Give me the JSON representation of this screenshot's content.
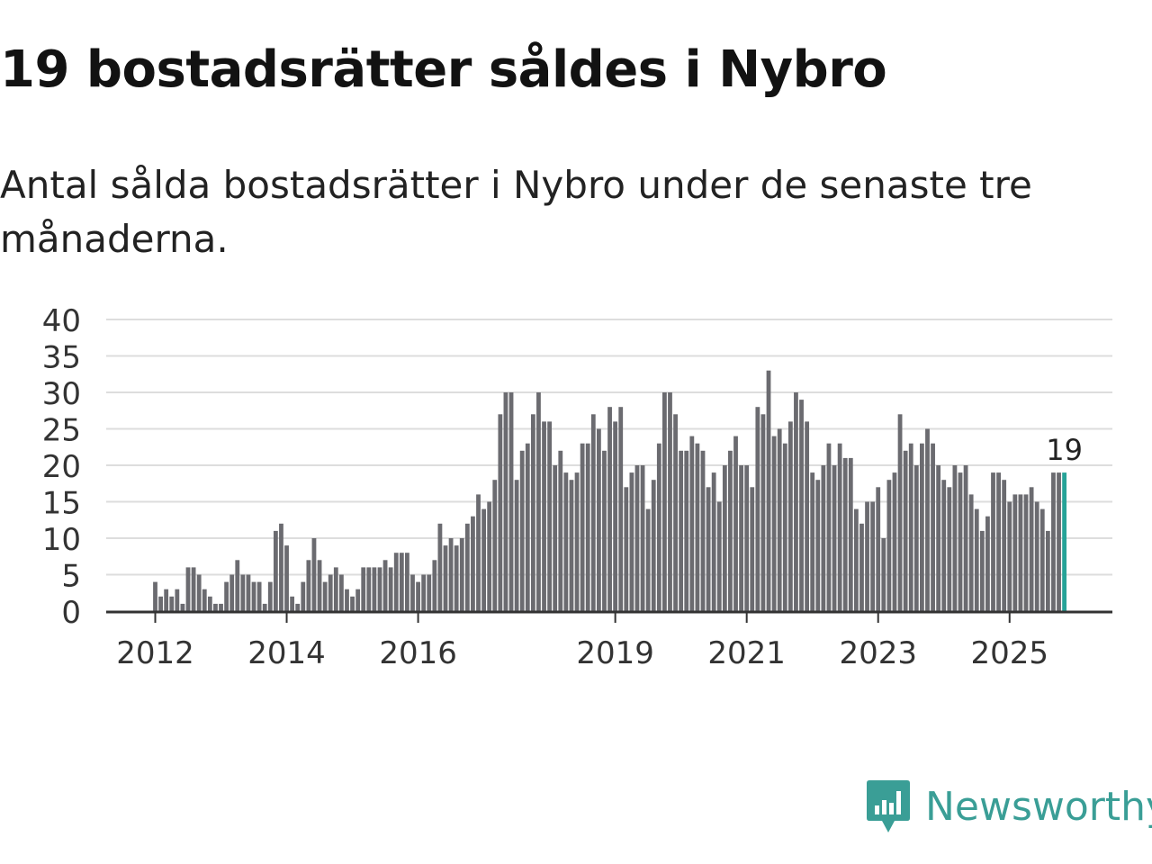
{
  "title": "19 bostadsrätter såldes i Nybro",
  "subtitle": "Antal sålda bostadsrätter i Nybro under de senaste tre månaderna.",
  "brand": {
    "name": "Newsworthy",
    "logo_icon": "bar-chart-speech-bubble-icon",
    "color": "#3a9e96"
  },
  "colors": {
    "bar": "#6b6b70",
    "highlight": "#26a398",
    "grid": "#dddddd",
    "axis": "#333333",
    "tick_text": "#333333"
  },
  "chart_data": {
    "type": "bar",
    "title": "19 bostadsrätter såldes i Nybro",
    "subtitle": "Antal sålda bostadsrätter i Nybro under de senaste tre månaderna.",
    "xlabel": "",
    "ylabel": "",
    "ylim": [
      0,
      40
    ],
    "yticks": [
      "0",
      "5",
      "10",
      "15",
      "20",
      "25",
      "30",
      "35",
      "40"
    ],
    "grid": true,
    "xtick_labels": [
      {
        "label": "2012",
        "bar_index": 0
      },
      {
        "label": "2014",
        "bar_index": 24
      },
      {
        "label": "2016",
        "bar_index": 48
      },
      {
        "label": "2019",
        "bar_index": 84
      },
      {
        "label": "2021",
        "bar_index": 108
      },
      {
        "label": "2023",
        "bar_index": 132
      },
      {
        "label": "2025",
        "bar_index": 156
      }
    ],
    "values": [
      4,
      2,
      3,
      2,
      3,
      1,
      6,
      6,
      5,
      3,
      2,
      1,
      1,
      4,
      5,
      7,
      5,
      5,
      4,
      4,
      1,
      4,
      11,
      12,
      9,
      2,
      1,
      4,
      7,
      10,
      7,
      4,
      5,
      6,
      5,
      3,
      2,
      3,
      6,
      6,
      6,
      6,
      7,
      6,
      8,
      8,
      8,
      5,
      4,
      5,
      5,
      7,
      12,
      9,
      10,
      9,
      10,
      12,
      13,
      16,
      14,
      15,
      18,
      27,
      30,
      30,
      18,
      22,
      23,
      27,
      30,
      26,
      26,
      20,
      22,
      19,
      18,
      19,
      23,
      23,
      27,
      25,
      22,
      28,
      26,
      28,
      17,
      19,
      20,
      20,
      14,
      18,
      23,
      30,
      30,
      27,
      22,
      22,
      24,
      23,
      22,
      17,
      19,
      15,
      20,
      22,
      24,
      20,
      20,
      17,
      28,
      27,
      33,
      24,
      25,
      23,
      26,
      30,
      29,
      26,
      19,
      18,
      20,
      23,
      20,
      23,
      21,
      21,
      14,
      12,
      15,
      15,
      17,
      10,
      18,
      19,
      27,
      22,
      23,
      20,
      23,
      25,
      23,
      20,
      18,
      17,
      20,
      19,
      20,
      16,
      14,
      11,
      13,
      19,
      19,
      18,
      15,
      16,
      16,
      16,
      17,
      15,
      14,
      11,
      19,
      19,
      19
    ],
    "highlight_index": 166,
    "annotation": {
      "text": "19",
      "bar_index": 166
    }
  }
}
